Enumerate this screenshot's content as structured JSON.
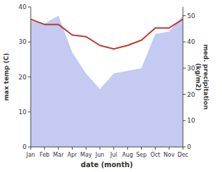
{
  "chart_data": {
    "type": "line",
    "xlabel": "date (month)",
    "ylabel": "max temp (C)",
    "y2label": "med. precipitation\n(kg/m2)",
    "categories": [
      "Jan",
      "Feb",
      "Mar",
      "Apr",
      "May",
      "Jun",
      "Jul",
      "Aug",
      "Sep",
      "Oct",
      "Nov",
      "Dec"
    ],
    "series": [
      {
        "type": "area",
        "axis": "y2",
        "color": "#b0b8ee",
        "values": [
          48,
          47,
          50,
          36,
          28,
          22,
          28,
          29,
          30,
          43,
          44,
          50
        ]
      },
      {
        "type": "line",
        "color": "#c0392b",
        "values": [
          36.5,
          35,
          35,
          32,
          31.5,
          29,
          28,
          29,
          30.5,
          34,
          34,
          36.5
        ]
      }
    ],
    "ylim": [
      0,
      40
    ],
    "yticks": [
      0,
      10,
      20,
      30,
      40
    ],
    "y2lim": [
      0,
      53.33
    ],
    "y2ticks": [
      0,
      10,
      20,
      30,
      40,
      50
    ],
    "grid": false
  }
}
